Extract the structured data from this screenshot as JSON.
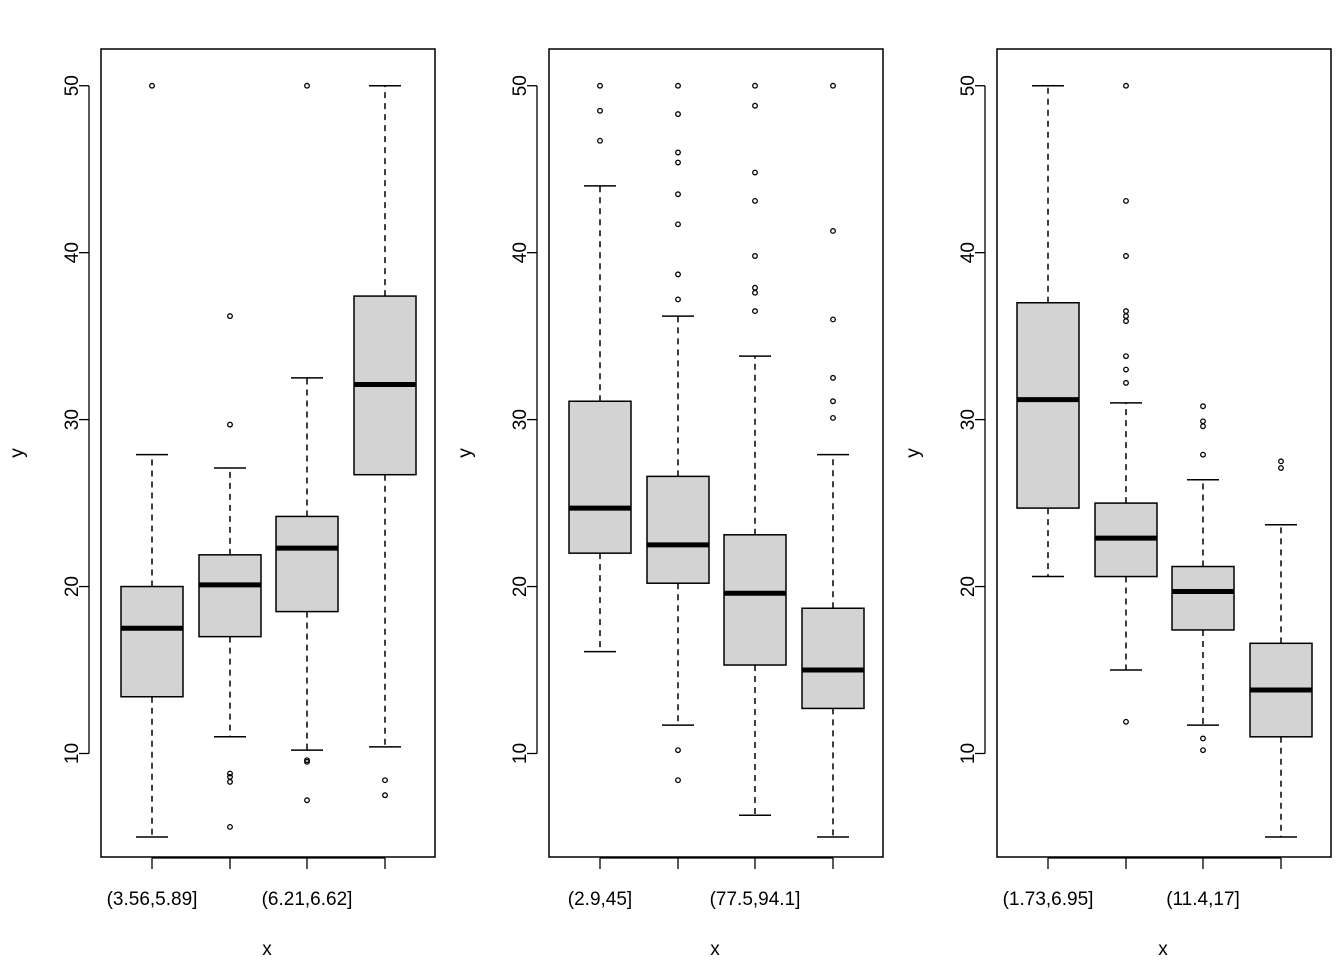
{
  "chart_data": [
    {
      "type": "boxplot",
      "xlabel": "x",
      "ylabel": "y",
      "ylim": [
        3.8,
        52.2
      ],
      "yticks": [
        10,
        20,
        30,
        40,
        50
      ],
      "categories": [
        "(3.56,5.89]",
        "",
        "(6.21,6.62]",
        ""
      ],
      "boxes": [
        {
          "whisker_low": 5.0,
          "q1": 13.4,
          "median": 17.5,
          "q3": 20.0,
          "whisker_high": 27.9,
          "outliers": [
            50.0
          ]
        },
        {
          "whisker_low": 11.0,
          "q1": 17.0,
          "median": 20.1,
          "q3": 21.9,
          "whisker_high": 27.1,
          "outliers": [
            36.2,
            29.7,
            8.8,
            8.6,
            8.3,
            5.6
          ]
        },
        {
          "whisker_low": 10.2,
          "q1": 18.5,
          "median": 22.3,
          "q3": 24.2,
          "whisker_high": 32.5,
          "outliers": [
            50.0,
            9.6,
            9.5,
            7.2
          ]
        },
        {
          "whisker_low": 10.4,
          "q1": 26.7,
          "median": 32.1,
          "q3": 37.4,
          "whisker_high": 50.0,
          "outliers": [
            8.4,
            7.5
          ]
        }
      ]
    },
    {
      "type": "boxplot",
      "xlabel": "x",
      "ylabel": "y",
      "ylim": [
        3.8,
        52.2
      ],
      "yticks": [
        10,
        20,
        30,
        40,
        50
      ],
      "categories": [
        "(2.9,45]",
        "",
        "(77.5,94.1]",
        ""
      ],
      "boxes": [
        {
          "whisker_low": 16.1,
          "q1": 22.0,
          "median": 24.7,
          "q3": 31.1,
          "whisker_high": 44.0,
          "outliers": [
            50.0,
            48.5,
            46.7
          ]
        },
        {
          "whisker_low": 11.7,
          "q1": 20.2,
          "median": 22.5,
          "q3": 26.6,
          "whisker_high": 36.2,
          "outliers": [
            50.0,
            48.3,
            46.0,
            45.4,
            43.5,
            41.7,
            38.7,
            37.2,
            10.2,
            8.4
          ]
        },
        {
          "whisker_low": 6.3,
          "q1": 15.3,
          "median": 19.6,
          "q3": 23.1,
          "whisker_high": 33.8,
          "outliers": [
            50.0,
            48.8,
            44.8,
            43.1,
            39.8,
            37.9,
            37.6,
            36.5
          ]
        },
        {
          "whisker_low": 5.0,
          "q1": 12.7,
          "median": 15.0,
          "q3": 18.7,
          "whisker_high": 27.9,
          "outliers": [
            50.0,
            41.3,
            36.0,
            32.5,
            31.1,
            30.1
          ]
        }
      ]
    },
    {
      "type": "boxplot",
      "xlabel": "x",
      "ylabel": "y",
      "ylim": [
        3.8,
        52.2
      ],
      "yticks": [
        10,
        20,
        30,
        40,
        50
      ],
      "categories": [
        "(1.73,6.95]",
        "",
        "(11.4,17]",
        ""
      ],
      "boxes": [
        {
          "whisker_low": 20.6,
          "q1": 24.7,
          "median": 31.2,
          "q3": 37.0,
          "whisker_high": 50.0,
          "outliers": []
        },
        {
          "whisker_low": 15.0,
          "q1": 20.6,
          "median": 22.9,
          "q3": 25.0,
          "whisker_high": 31.0,
          "outliers": [
            50.0,
            43.1,
            39.8,
            36.5,
            36.2,
            35.9,
            33.8,
            33.0,
            32.2,
            11.9
          ]
        },
        {
          "whisker_low": 11.7,
          "q1": 17.4,
          "median": 19.7,
          "q3": 21.2,
          "whisker_high": 26.4,
          "outliers": [
            30.8,
            29.9,
            29.6,
            27.9,
            10.9,
            10.2
          ]
        },
        {
          "whisker_low": 5.0,
          "q1": 11.0,
          "median": 13.8,
          "q3": 16.6,
          "whisker_high": 23.7,
          "outliers": [
            27.5,
            27.1
          ]
        }
      ]
    }
  ]
}
